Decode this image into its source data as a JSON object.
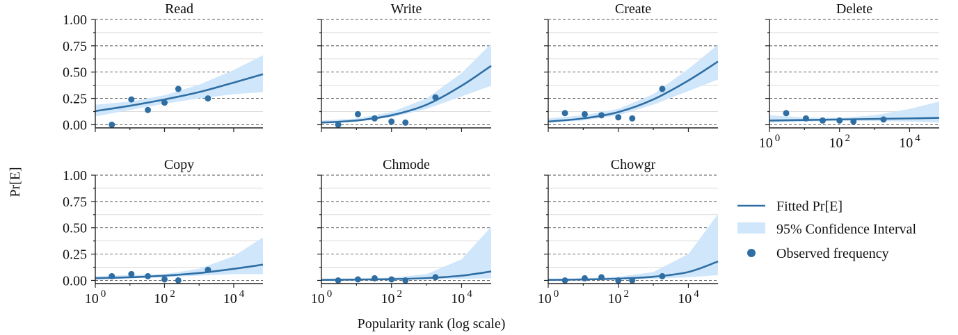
{
  "figure": {
    "ylabel": "Pr[E]",
    "xlabel": "Popularity rank (log scale)",
    "legend": {
      "placement": "right, lower-middle",
      "fit_label": "Fitted Pr[E]",
      "ci_label": "95% Confidence Interval",
      "obs_label": "Observed frequency"
    },
    "colors": {
      "line": "#2f6ea3",
      "ci": "#cfe6fb",
      "point": "#2f6ea3"
    }
  },
  "chart_data": [
    {
      "type": "line",
      "title": "Read",
      "xscale": "log",
      "xlim": [
        1,
        70000
      ],
      "ylim": [
        -0.03,
        1.0
      ],
      "yticks": [
        "0.00",
        "0.25",
        "0.50",
        "0.75",
        "1.00"
      ],
      "xticks": [],
      "fit": {
        "x": [
          1,
          10,
          100,
          1000,
          10000,
          70000
        ],
        "y": [
          0.13,
          0.18,
          0.24,
          0.31,
          0.4,
          0.48
        ]
      },
      "ci": {
        "x": [
          1,
          10,
          100,
          1000,
          10000,
          70000
        ],
        "lower": [
          0.08,
          0.14,
          0.2,
          0.25,
          0.29,
          0.31
        ],
        "upper": [
          0.19,
          0.22,
          0.28,
          0.38,
          0.52,
          0.66
        ]
      },
      "observed": {
        "x": [
          3,
          11,
          33,
          100,
          250,
          1800
        ],
        "y": [
          0.0,
          0.24,
          0.14,
          0.21,
          0.34,
          0.25
        ]
      }
    },
    {
      "type": "line",
      "title": "Write",
      "xscale": "log",
      "xlim": [
        1,
        70000
      ],
      "ylim": [
        -0.03,
        1.0
      ],
      "yticks": [],
      "xticks": [],
      "fit": {
        "x": [
          1,
          10,
          100,
          1000,
          10000,
          70000
        ],
        "y": [
          0.02,
          0.04,
          0.09,
          0.19,
          0.37,
          0.56
        ]
      },
      "ci": {
        "x": [
          1,
          10,
          100,
          1000,
          10000,
          70000
        ],
        "lower": [
          0.01,
          0.03,
          0.07,
          0.15,
          0.27,
          0.37
        ],
        "upper": [
          0.04,
          0.06,
          0.12,
          0.25,
          0.49,
          0.77
        ]
      },
      "observed": {
        "x": [
          3,
          11,
          33,
          100,
          250,
          1800
        ],
        "y": [
          0.0,
          0.1,
          0.06,
          0.03,
          0.02,
          0.26
        ]
      }
    },
    {
      "type": "line",
      "title": "Create",
      "xscale": "log",
      "xlim": [
        1,
        70000
      ],
      "ylim": [
        -0.03,
        1.0
      ],
      "yticks": [],
      "xticks": [],
      "fit": {
        "x": [
          1,
          10,
          100,
          1000,
          10000,
          70000
        ],
        "y": [
          0.03,
          0.06,
          0.12,
          0.24,
          0.42,
          0.6
        ]
      },
      "ci": {
        "x": [
          1,
          10,
          100,
          1000,
          10000,
          70000
        ],
        "lower": [
          0.02,
          0.04,
          0.09,
          0.19,
          0.32,
          0.43
        ],
        "upper": [
          0.06,
          0.09,
          0.15,
          0.29,
          0.53,
          0.76
        ]
      },
      "observed": {
        "x": [
          3,
          11,
          33,
          100,
          250,
          1800
        ],
        "y": [
          0.11,
          0.1,
          0.09,
          0.07,
          0.06,
          0.34
        ]
      }
    },
    {
      "type": "line",
      "title": "Delete",
      "xscale": "log",
      "xlim": [
        1,
        70000
      ],
      "ylim": [
        -0.03,
        1.0
      ],
      "yticks": [],
      "xticks": [
        "10^0",
        "10^2",
        "10^4"
      ],
      "fit": {
        "x": [
          1,
          10,
          100,
          1000,
          10000,
          70000
        ],
        "y": [
          0.04,
          0.045,
          0.05,
          0.055,
          0.06,
          0.065
        ]
      },
      "ci": {
        "x": [
          1,
          10,
          100,
          1000,
          10000,
          70000
        ],
        "lower": [
          0.02,
          0.03,
          0.035,
          0.035,
          0.03,
          0.02
        ],
        "upper": [
          0.09,
          0.07,
          0.065,
          0.09,
          0.15,
          0.22
        ]
      },
      "observed": {
        "x": [
          3,
          11,
          33,
          100,
          250,
          1800
        ],
        "y": [
          0.11,
          0.06,
          0.04,
          0.04,
          0.03,
          0.05
        ]
      }
    },
    {
      "type": "line",
      "title": "Copy",
      "xscale": "log",
      "xlim": [
        1,
        70000
      ],
      "ylim": [
        -0.03,
        1.0
      ],
      "yticks": [
        "0.00",
        "0.25",
        "0.50",
        "0.75",
        "1.00"
      ],
      "xticks": [
        "10^0",
        "10^2",
        "10^4"
      ],
      "fit": {
        "x": [
          1,
          10,
          100,
          1000,
          10000,
          70000
        ],
        "y": [
          0.02,
          0.03,
          0.045,
          0.07,
          0.11,
          0.15
        ]
      },
      "ci": {
        "x": [
          1,
          10,
          100,
          1000,
          10000,
          70000
        ],
        "lower": [
          0.01,
          0.02,
          0.03,
          0.045,
          0.06,
          0.06
        ],
        "upper": [
          0.04,
          0.05,
          0.06,
          0.11,
          0.23,
          0.41
        ]
      },
      "observed": {
        "x": [
          3,
          11,
          33,
          100,
          250,
          1800
        ],
        "y": [
          0.04,
          0.06,
          0.04,
          0.01,
          0.0,
          0.1
        ]
      }
    },
    {
      "type": "line",
      "title": "Chmode",
      "xscale": "log",
      "xlim": [
        1,
        70000
      ],
      "ylim": [
        -0.03,
        1.0
      ],
      "yticks": [],
      "xticks": [
        "10^0",
        "10^2",
        "10^4"
      ],
      "fit": {
        "x": [
          1,
          10,
          100,
          1000,
          10000,
          70000
        ],
        "y": [
          0.005,
          0.008,
          0.012,
          0.022,
          0.045,
          0.085
        ]
      },
      "ci": {
        "x": [
          1,
          10,
          100,
          1000,
          10000,
          70000
        ],
        "lower": [
          0.0,
          0.003,
          0.006,
          0.01,
          0.015,
          0.02
        ],
        "upper": [
          0.015,
          0.02,
          0.025,
          0.06,
          0.2,
          0.51
        ]
      },
      "observed": {
        "x": [
          3,
          11,
          33,
          100,
          250,
          1800
        ],
        "y": [
          0.0,
          0.01,
          0.02,
          0.01,
          0.0,
          0.03
        ]
      }
    },
    {
      "type": "line",
      "title": "Chowgr",
      "xscale": "log",
      "xlim": [
        1,
        70000
      ],
      "ylim": [
        -0.03,
        1.0
      ],
      "yticks": [],
      "xticks": [
        "10^0",
        "10^2",
        "10^4"
      ],
      "fit": {
        "x": [
          1,
          10,
          100,
          1000,
          10000,
          70000
        ],
        "y": [
          0.005,
          0.009,
          0.017,
          0.035,
          0.08,
          0.18
        ]
      },
      "ci": {
        "x": [
          1,
          10,
          100,
          1000,
          10000,
          70000
        ],
        "lower": [
          0.0,
          0.004,
          0.008,
          0.015,
          0.03,
          0.05
        ],
        "upper": [
          0.015,
          0.02,
          0.035,
          0.08,
          0.25,
          0.63
        ]
      },
      "observed": {
        "x": [
          3,
          11,
          33,
          100,
          250,
          1800
        ],
        "y": [
          0.0,
          0.02,
          0.03,
          0.0,
          0.0,
          0.04
        ]
      }
    }
  ]
}
